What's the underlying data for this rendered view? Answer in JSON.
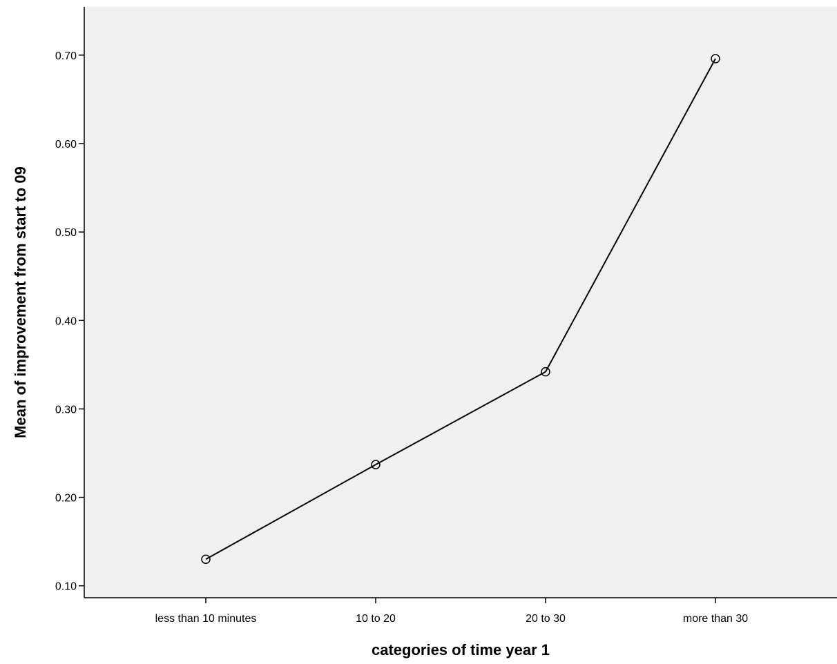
{
  "chart_data": {
    "type": "line",
    "title": "",
    "xlabel": "categories of time year 1",
    "ylabel": "Mean of improvement from start to 09",
    "categories": [
      "less than 10 minutes",
      "10 to 20",
      "20 to 30",
      "more than 30"
    ],
    "series": [
      {
        "values": [
          0.13,
          0.237,
          0.342,
          0.696
        ],
        "marker": "open-circle",
        "color": "#000000"
      }
    ],
    "yticks": [
      0.1,
      0.2,
      0.3,
      0.4,
      0.5,
      0.6,
      0.7
    ],
    "ytick_labels": [
      "0.10",
      "0.20",
      "0.30",
      "0.40",
      "0.50",
      "0.60",
      "0.70"
    ],
    "ylim": [
      0.067,
      0.735
    ],
    "grid": false,
    "plot_background": "#f0f0f0",
    "legend": "none"
  }
}
